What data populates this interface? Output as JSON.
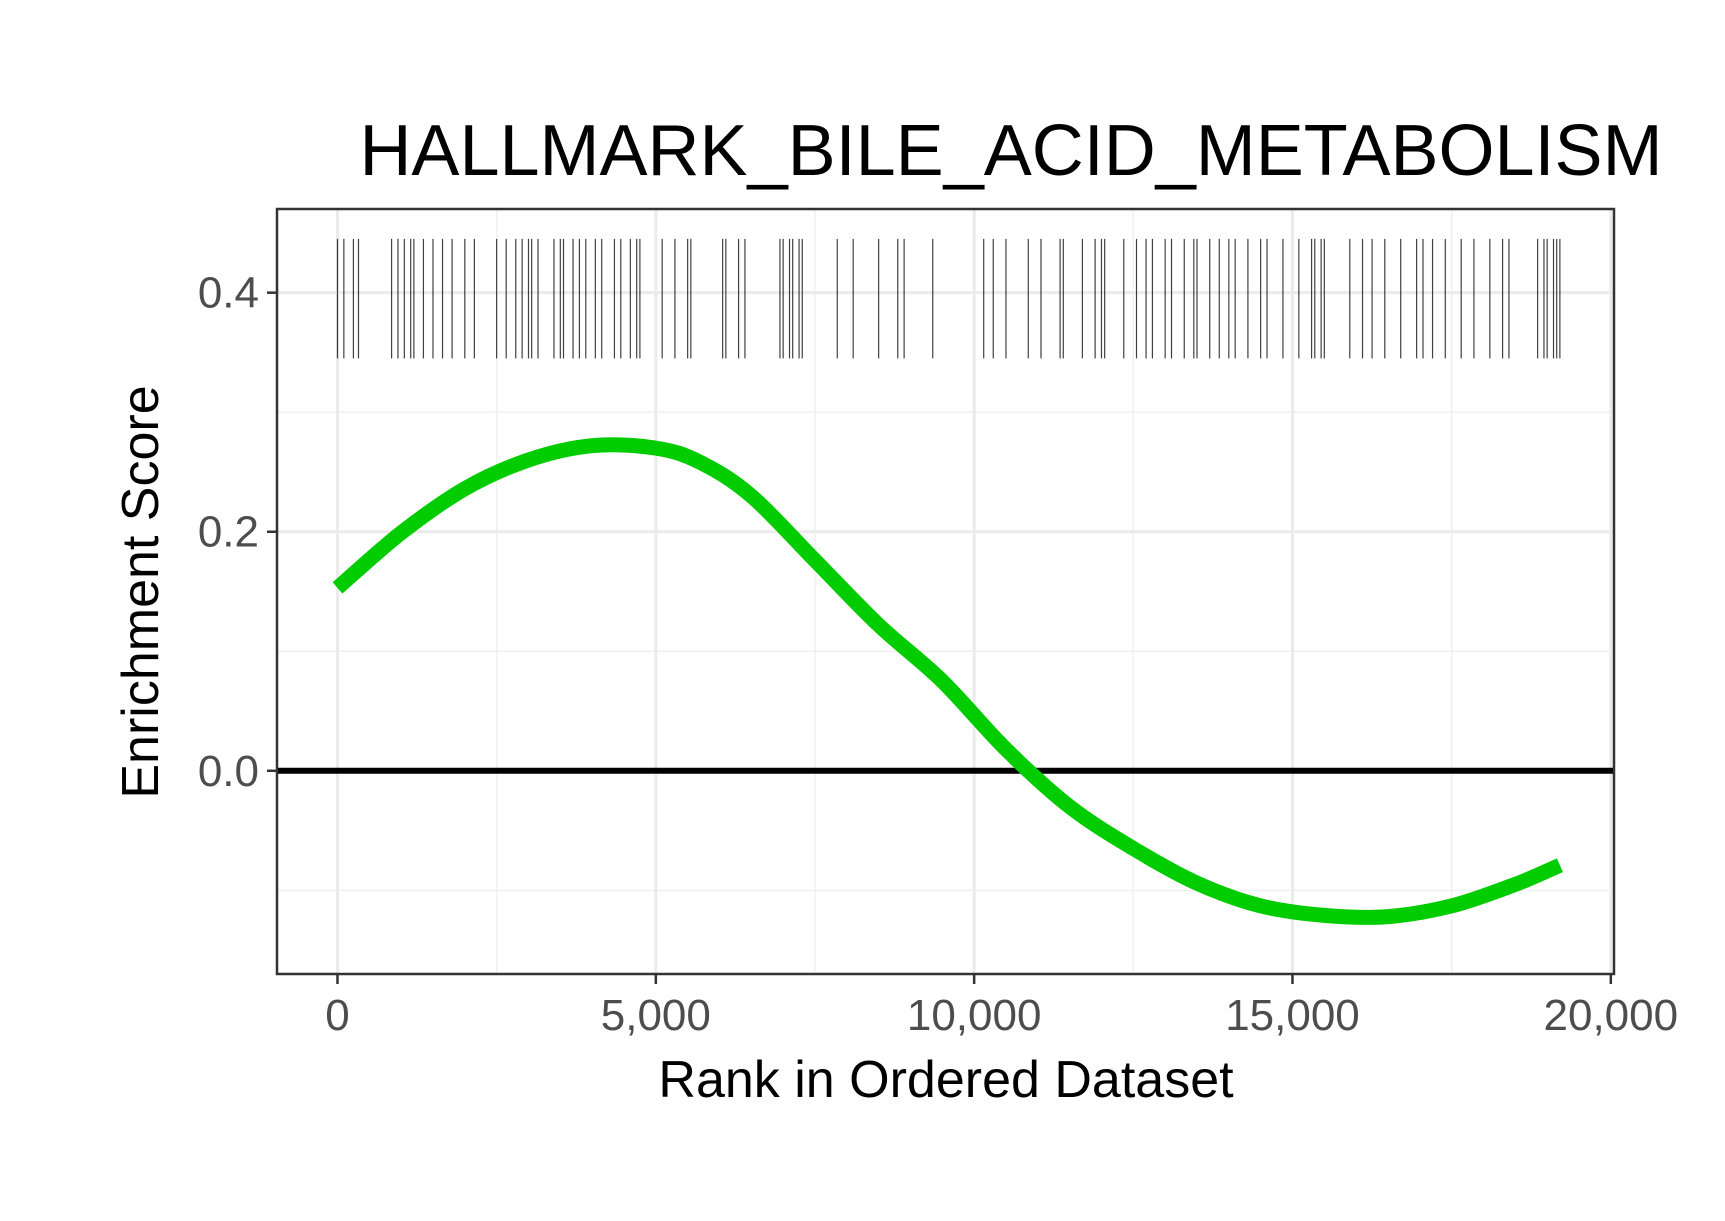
{
  "chart_data": {
    "type": "line",
    "title": "HALLMARK_BILE_ACID_METABOLISM",
    "xlabel": "Rank in Ordered Dataset",
    "ylabel": "Enrichment Score",
    "xlim": [
      -950,
      20050
    ],
    "ylim": [
      -0.17,
      0.47
    ],
    "x_ticks": [
      0,
      5000,
      10000,
      15000,
      20000
    ],
    "x_tick_labels": [
      "0",
      "5,000",
      "10,000",
      "15,000",
      "20,000"
    ],
    "y_ticks": [
      0.0,
      0.2,
      0.4
    ],
    "y_tick_labels": [
      "0.0",
      "0.2",
      "0.4"
    ],
    "grid": true,
    "zero_line": 0.0,
    "series": [
      {
        "color": "#00cc00",
        "x": [
          0,
          1000,
          2000,
          3000,
          4000,
          5000,
          5700,
          6500,
          7500,
          8500,
          9500,
          10500,
          11500,
          12500,
          13500,
          14500,
          15500,
          16500,
          17500,
          18500,
          19200
        ],
        "y": [
          0.153,
          0.199,
          0.236,
          0.26,
          0.272,
          0.27,
          0.258,
          0.23,
          0.176,
          0.122,
          0.075,
          0.018,
          -0.03,
          -0.065,
          -0.094,
          -0.113,
          -0.121,
          -0.122,
          -0.113,
          -0.095,
          -0.079
        ]
      }
    ],
    "rug": {
      "color": "#000000",
      "y_range": [
        0.345,
        0.445
      ],
      "positions": [
        0,
        100,
        250,
        330,
        850,
        950,
        1050,
        1150,
        1200,
        1350,
        1500,
        1650,
        1800,
        2000,
        2150,
        2500,
        2650,
        2800,
        2900,
        3000,
        3050,
        3150,
        3400,
        3500,
        3550,
        3700,
        3800,
        3900,
        4050,
        4150,
        4350,
        4450,
        4600,
        4700,
        4750,
        5100,
        5300,
        5500,
        5550,
        6050,
        6100,
        6300,
        6400,
        6950,
        7000,
        7100,
        7150,
        7250,
        7300,
        7850,
        8100,
        8500,
        8800,
        8900,
        9350,
        10150,
        10300,
        10500,
        10850,
        11050,
        11350,
        11400,
        11700,
        11900,
        12000,
        12050,
        12350,
        12550,
        12700,
        12800,
        13000,
        13100,
        13300,
        13450,
        13500,
        13700,
        13850,
        14000,
        14100,
        14300,
        14500,
        14600,
        14850,
        15100,
        15300,
        15350,
        15450,
        15500,
        15900,
        16100,
        16250,
        16450,
        16700,
        16950,
        17050,
        17200,
        17400,
        17650,
        17850,
        18100,
        18300,
        18400,
        18850,
        18950,
        19000,
        19100,
        19150,
        19200
      ]
    }
  }
}
